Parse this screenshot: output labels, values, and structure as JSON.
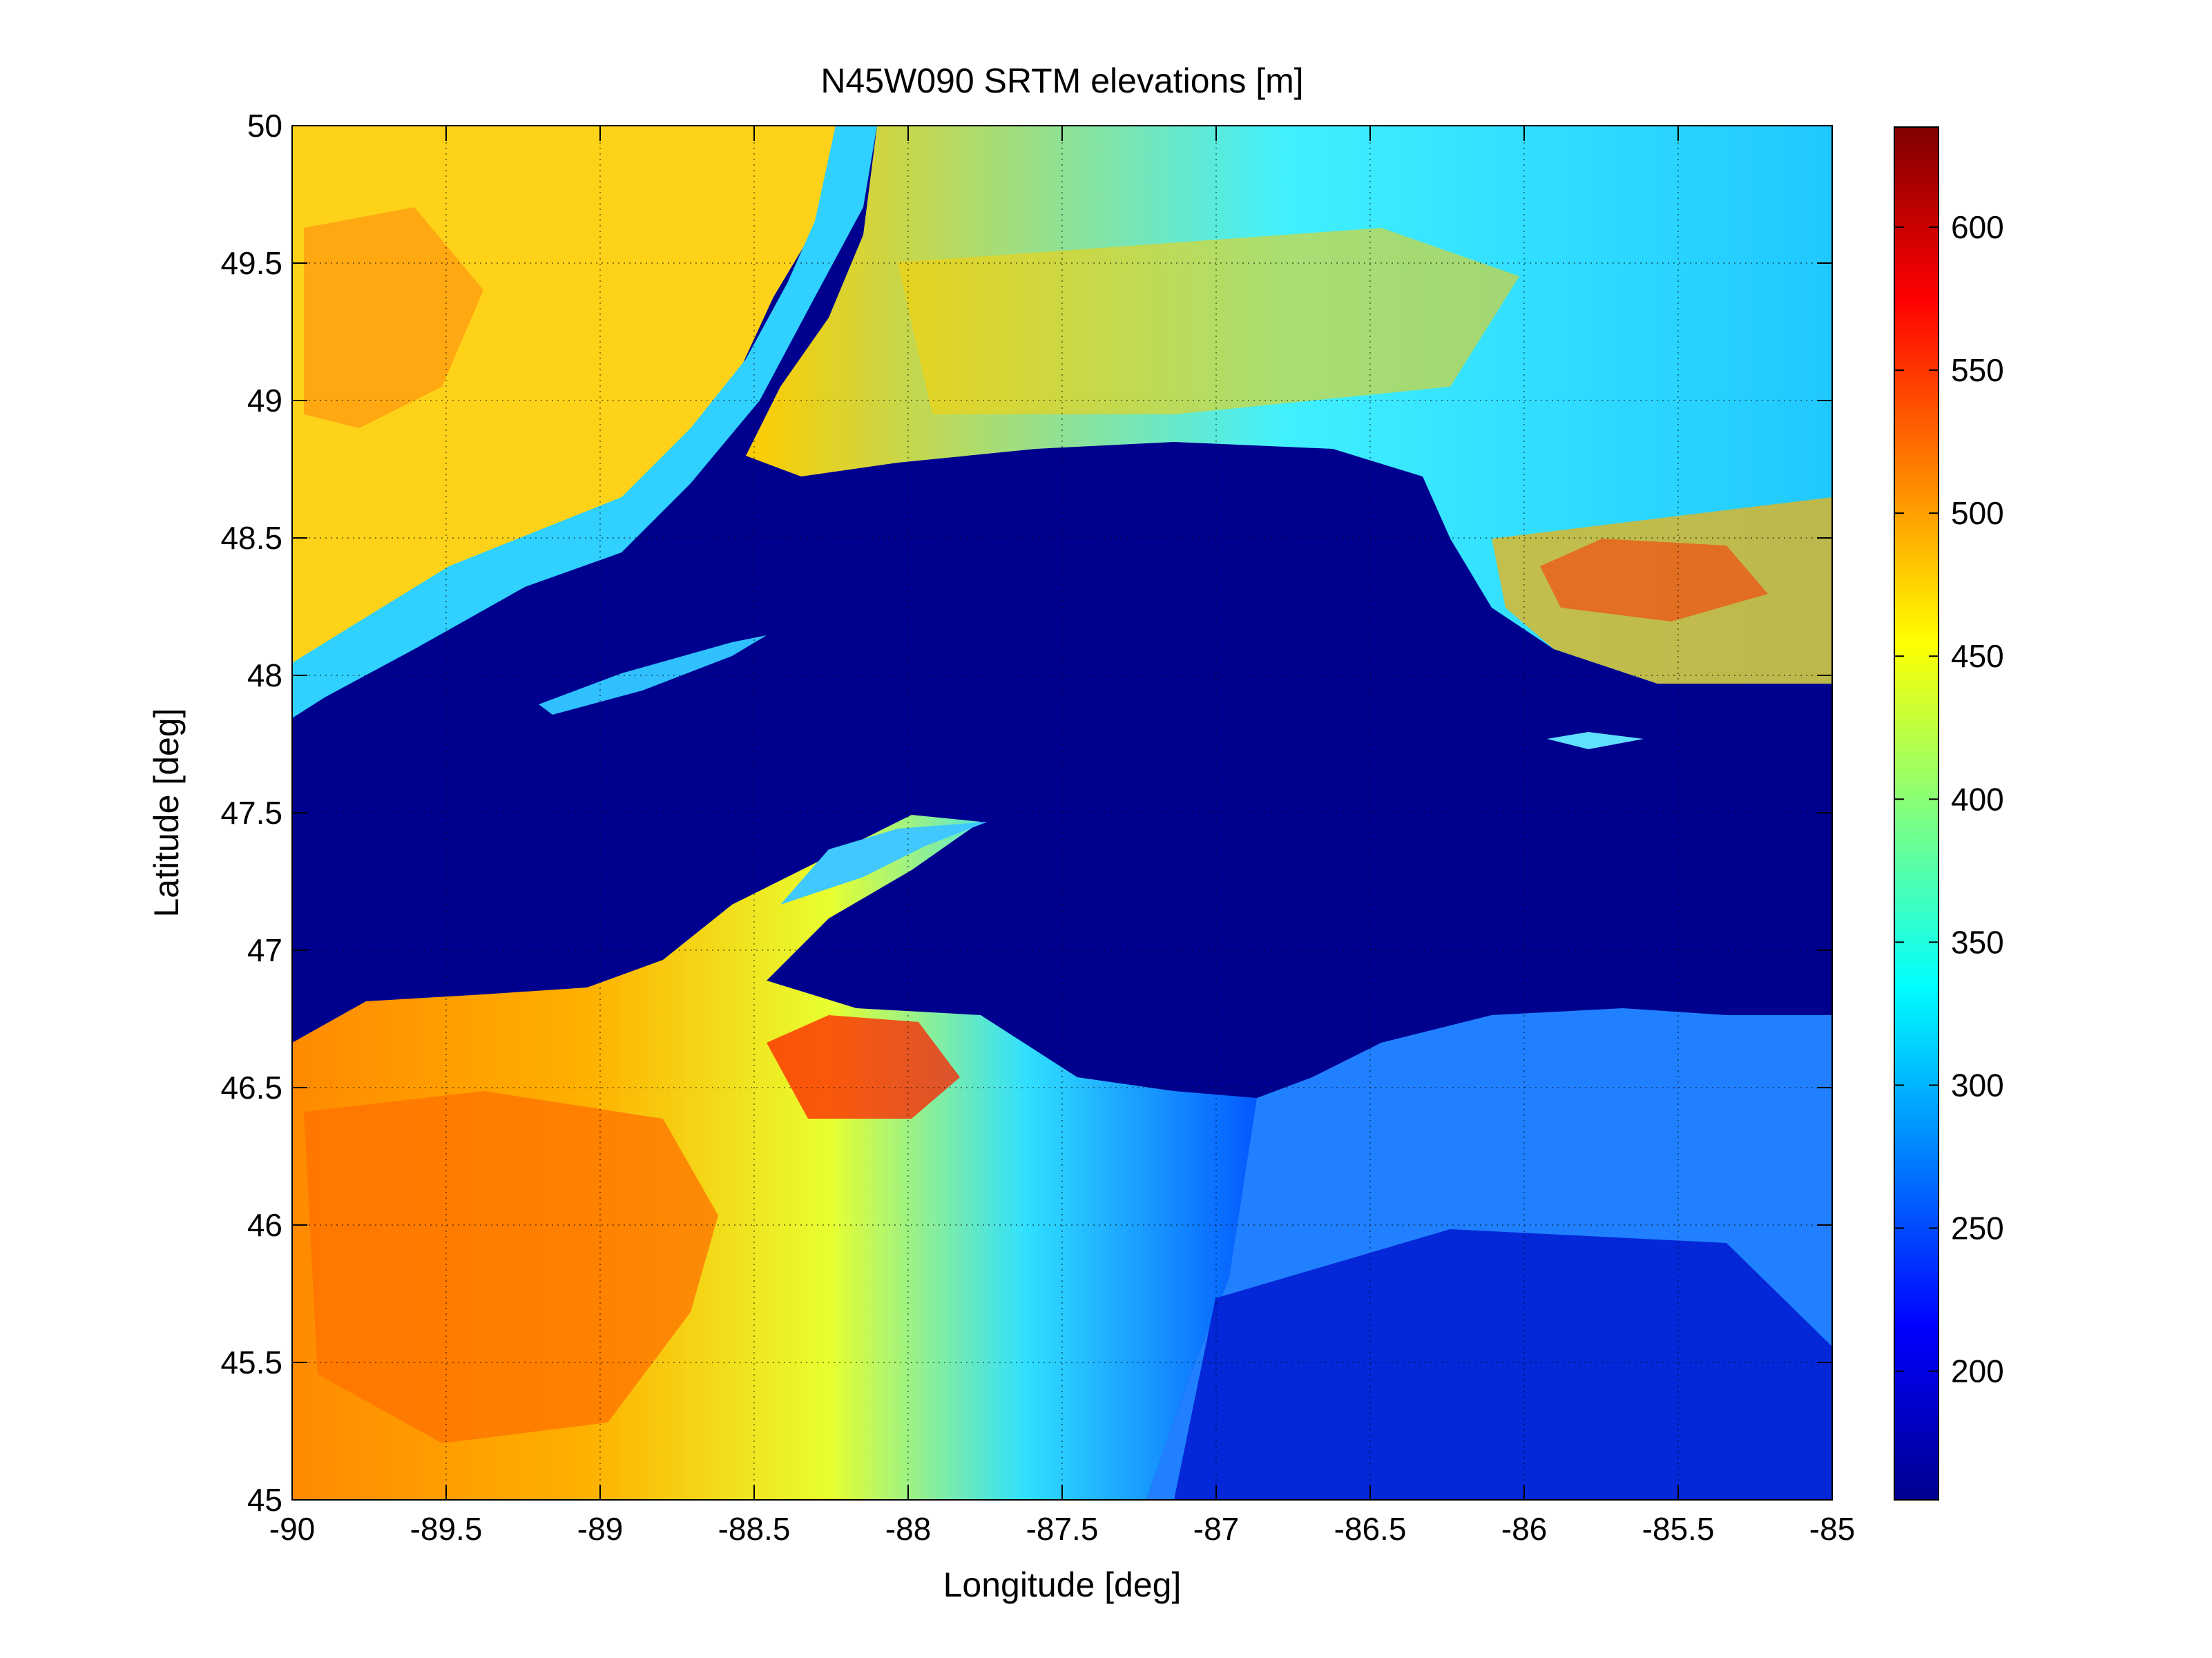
{
  "chart_data": {
    "type": "heatmap",
    "title": "N45W090 SRTM elevations [m]",
    "xlabel": "Longitude [deg]",
    "ylabel": "Latitude [deg]",
    "xlim": [
      -90,
      -85
    ],
    "ylim": [
      45,
      50
    ],
    "x_ticks": [
      "-90",
      "-89.5",
      "-89",
      "-88.5",
      "-88",
      "-87.5",
      "-87",
      "-86.5",
      "-86",
      "-85.5",
      "-85"
    ],
    "x_tick_values": [
      -90,
      -89.5,
      -89,
      -88.5,
      -88,
      -87.5,
      -87,
      -86.5,
      -86,
      -85.5,
      -85
    ],
    "y_ticks": [
      "45",
      "45.5",
      "46",
      "46.5",
      "47",
      "47.5",
      "48",
      "48.5",
      "49",
      "49.5",
      "50"
    ],
    "y_tick_values": [
      45,
      45.5,
      46,
      46.5,
      47,
      47.5,
      48,
      48.5,
      49,
      49.5,
      50
    ],
    "grid": true,
    "colormap": "jet",
    "colorbar": {
      "range": [
        155,
        635
      ],
      "ticks": [
        "200",
        "250",
        "300",
        "350",
        "400",
        "450",
        "500",
        "550",
        "600"
      ],
      "tick_values": [
        200,
        250,
        300,
        350,
        400,
        450,
        500,
        550,
        600
      ]
    },
    "colors": {
      "lake": "#00008f",
      "low": "#0030ff",
      "mid": "#20e0ff",
      "high": "#ffe000",
      "peak": "#ff2000"
    }
  }
}
